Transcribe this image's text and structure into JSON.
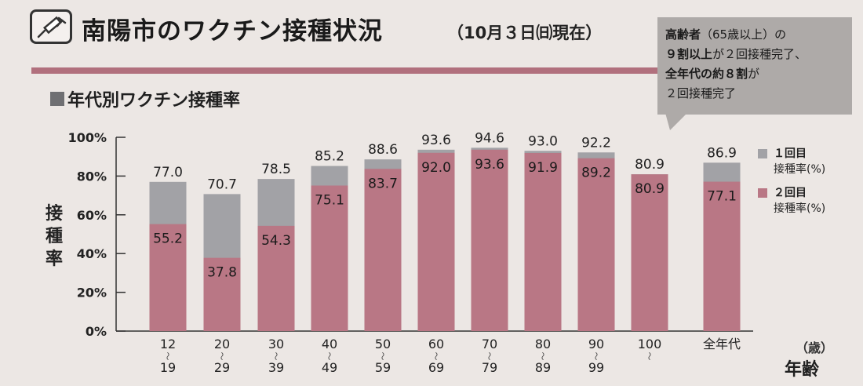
{
  "header": {
    "title": "南陽市のワクチン接種状況",
    "date": "（10月３日㈰現在）",
    "icon": "syringe-icon"
  },
  "callout": {
    "lines": [
      {
        "parts": [
          {
            "text": "高齢者",
            "bold": true
          },
          {
            "text": "（65歳以上）の",
            "bold": false
          }
        ]
      },
      {
        "parts": [
          {
            "text": "９割以上",
            "bold": true
          },
          {
            "text": "が２回接種完了、",
            "bold": false
          }
        ]
      },
      {
        "parts": [
          {
            "text": "全年代の約８割",
            "bold": true
          },
          {
            "text": "が",
            "bold": false
          }
        ]
      },
      {
        "parts": [
          {
            "text": "２回接種完了",
            "bold": false
          }
        ]
      }
    ]
  },
  "colors": {
    "first_dose": "#a2a2a6",
    "second_dose": "#b97785",
    "accent_rule": "#b1707d",
    "background": "#ece7e4"
  },
  "chart_data": {
    "type": "bar",
    "title": "年代別ワクチン接種率",
    "ylabel": "接種率",
    "xlabel": "年齢",
    "xunit": "（歳）",
    "ylim": [
      0,
      100
    ],
    "yticks": [
      "0%",
      "20%",
      "40%",
      "60%",
      "80%",
      "100%"
    ],
    "categories": [
      {
        "top": "12",
        "bottom": "19"
      },
      {
        "top": "20",
        "bottom": "29"
      },
      {
        "top": "30",
        "bottom": "39"
      },
      {
        "top": "40",
        "bottom": "49"
      },
      {
        "top": "50",
        "bottom": "59"
      },
      {
        "top": "60",
        "bottom": "69"
      },
      {
        "top": "70",
        "bottom": "79"
      },
      {
        "top": "80",
        "bottom": "89"
      },
      {
        "top": "90",
        "bottom": "99"
      },
      {
        "top": "100",
        "bottom": ""
      },
      {
        "top": "全年代",
        "bottom": ""
      }
    ],
    "series": [
      {
        "name": "１回目接種率(%)",
        "values": [
          77.0,
          70.7,
          78.5,
          85.2,
          88.6,
          93.6,
          94.6,
          93.0,
          92.2,
          80.9,
          86.9
        ]
      },
      {
        "name": "２回目接種率(%)",
        "values": [
          55.2,
          37.8,
          54.3,
          75.1,
          83.7,
          92.0,
          93.6,
          91.9,
          89.2,
          80.9,
          77.1
        ]
      }
    ],
    "legend": [
      {
        "line1": "１回目",
        "line2": "接種率(%)"
      },
      {
        "line1": "２回目",
        "line2": "接種率(%)"
      }
    ],
    "legend_position": "right"
  }
}
